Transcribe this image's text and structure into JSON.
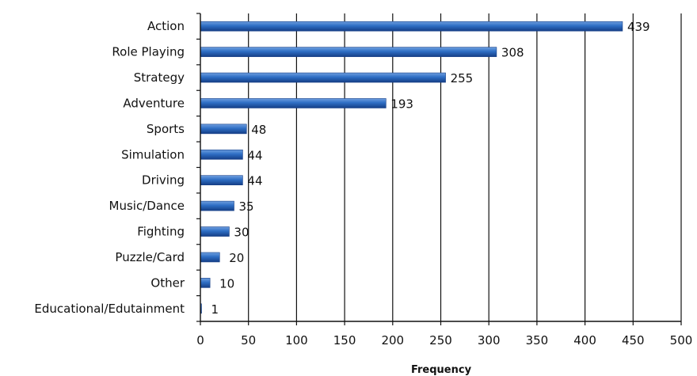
{
  "chart_data": {
    "type": "bar",
    "orientation": "horizontal",
    "categories": [
      "Action",
      "Role Playing",
      "Strategy",
      "Adventure",
      "Sports",
      "Simulation",
      "Driving",
      "Music/Dance",
      "Fighting",
      "Puzzle/Card",
      "Other",
      "Educational/Edutainment"
    ],
    "values": [
      439,
      308,
      255,
      193,
      48,
      44,
      44,
      35,
      30,
      20,
      10,
      1
    ],
    "title": "",
    "xlabel": "Frequency",
    "ylabel": "",
    "xlim": [
      0,
      500
    ],
    "xticks": [
      "0",
      "50",
      "100",
      "150",
      "200",
      "250",
      "300",
      "350",
      "400",
      "450",
      "500"
    ],
    "grid": "vertical",
    "data_labels": true,
    "bar_color": "#2e6ec4",
    "bar_color_dark": "#153e86",
    "bar_color_light": "#6f9fdf"
  }
}
